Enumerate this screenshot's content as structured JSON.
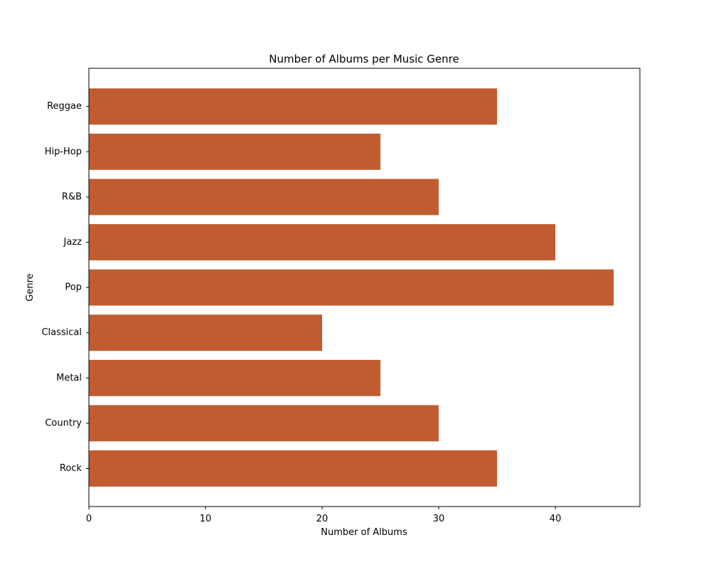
{
  "chart_data": {
    "type": "bar",
    "orientation": "horizontal",
    "title": "Number of Albums per Music Genre",
    "xlabel": "Number of Albums",
    "ylabel": "Genre",
    "categories": [
      "Rock",
      "Country",
      "Metal",
      "Classical",
      "Pop",
      "Jazz",
      "R&B",
      "Hip-Hop",
      "Reggae"
    ],
    "values": [
      35,
      30,
      25,
      20,
      45,
      40,
      30,
      25,
      35
    ],
    "xlim": [
      0,
      47.25
    ],
    "xticks": [
      0,
      10,
      20,
      30,
      40
    ],
    "bar_color": "#c05c30",
    "grid": false,
    "legend": "none"
  }
}
